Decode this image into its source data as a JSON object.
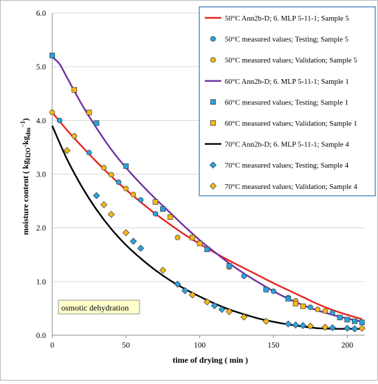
{
  "chart_data": {
    "type": "scatter",
    "xlabel": "time of drying  ( min )",
    "ylabel": "moisture content  ( kg",
    "ylabel_sub1": "H2O",
    "ylabel_mid": "·kg",
    "ylabel_sub2": "dm",
    "ylabel_sup": "−1",
    "ylabel_end": ")",
    "xlim": [
      0,
      212
    ],
    "ylim": [
      0,
      6.0
    ],
    "x_ticks": [
      "0",
      "50",
      "100",
      "150",
      "200"
    ],
    "y_ticks": [
      "0.0",
      "1.0",
      "2.0",
      "3.0",
      "4.0",
      "5.0",
      "6.0"
    ],
    "annotation": "osmotic dehydration",
    "legend_placement": "top-right",
    "series": [
      {
        "name": "50°C  Ann2b-D; 6. MLP 5-11-1; Sample 5",
        "kind": "line",
        "color": "#e8231f",
        "x": [
          0,
          10,
          20,
          30,
          40,
          50,
          60,
          70,
          80,
          90,
          100,
          110,
          120,
          130,
          140,
          150,
          160,
          170,
          180,
          190,
          200,
          210
        ],
        "y": [
          4.15,
          3.82,
          3.52,
          3.23,
          2.96,
          2.71,
          2.48,
          2.26,
          2.06,
          1.87,
          1.7,
          1.54,
          1.39,
          1.25,
          1.11,
          0.97,
          0.84,
          0.71,
          0.58,
          0.47,
          0.38,
          0.3
        ]
      },
      {
        "name": "50°C measured values; Testing; Sample 5",
        "kind": "marker",
        "marker": "circle",
        "color": "#2aa3dc",
        "x": [
          5,
          25,
          45,
          60,
          70,
          130,
          150,
          160,
          175,
          190
        ],
        "y": [
          4.0,
          3.4,
          2.85,
          2.52,
          2.26,
          1.1,
          0.82,
          0.7,
          0.52,
          0.42
        ]
      },
      {
        "name": "50°C measured values; Validation; Sample 5",
        "kind": "marker",
        "marker": "circle",
        "color": "#f6b716",
        "x": [
          0,
          15,
          35,
          40,
          50,
          55,
          85,
          120,
          165,
          180,
          185
        ],
        "y": [
          4.15,
          3.71,
          3.12,
          2.99,
          2.73,
          2.62,
          1.82,
          1.27,
          0.64,
          0.48,
          0.45
        ]
      },
      {
        "name": "60°C  Ann2b-D; 6. MLP 5-11-1; Sample 1",
        "kind": "line",
        "color": "#7030a0",
        "x": [
          0,
          5,
          10,
          20,
          30,
          40,
          50,
          60,
          70,
          80,
          90,
          100,
          110,
          120,
          130,
          140,
          150,
          160,
          170,
          180,
          190,
          200,
          210
        ],
        "y": [
          5.18,
          5.05,
          4.8,
          4.3,
          3.86,
          3.46,
          3.12,
          2.82,
          2.54,
          2.28,
          2.02,
          1.77,
          1.55,
          1.34,
          1.15,
          0.98,
          0.82,
          0.68,
          0.56,
          0.46,
          0.38,
          0.31,
          0.25
        ]
      },
      {
        "name": "60°C measured values; Testing; Sample 1",
        "kind": "marker",
        "marker": "square",
        "color": "#2aa3dc",
        "x": [
          0,
          30,
          50,
          75,
          105,
          120,
          145,
          160,
          195,
          200,
          205,
          210
        ],
        "y": [
          5.21,
          3.95,
          3.15,
          2.35,
          1.6,
          1.29,
          0.85,
          0.68,
          0.33,
          0.29,
          0.26,
          0.24
        ]
      },
      {
        "name": "60°C measured values; Validation; Sample 1",
        "kind": "marker",
        "marker": "square",
        "color": "#f6b716",
        "x": [
          15,
          25,
          70,
          80,
          95,
          100,
          165,
          170
        ],
        "y": [
          4.57,
          4.15,
          2.48,
          2.2,
          1.82,
          1.71,
          0.59,
          0.54
        ]
      },
      {
        "name": "70°C  Ann2b-D; 6. MLP 5-11-1; Sample 4",
        "kind": "line",
        "color": "#000000",
        "x": [
          0,
          10,
          20,
          30,
          40,
          50,
          60,
          70,
          80,
          90,
          100,
          110,
          120,
          130,
          140,
          150,
          160,
          170,
          180,
          190,
          200,
          210
        ],
        "y": [
          3.9,
          3.28,
          2.77,
          2.34,
          1.98,
          1.68,
          1.43,
          1.21,
          1.02,
          0.86,
          0.72,
          0.59,
          0.48,
          0.39,
          0.31,
          0.25,
          0.2,
          0.16,
          0.13,
          0.12,
          0.12,
          0.12
        ]
      },
      {
        "name": "70°C measured values; Testing; Sample 4",
        "kind": "marker",
        "marker": "diamond",
        "color": "#2aa3dc",
        "x": [
          30,
          55,
          60,
          85,
          90,
          110,
          115,
          160,
          165,
          170,
          190,
          200,
          205
        ],
        "y": [
          2.6,
          1.75,
          1.62,
          0.95,
          0.83,
          0.55,
          0.48,
          0.21,
          0.19,
          0.18,
          0.14,
          0.13,
          0.12
        ]
      },
      {
        "name": "70°C measured values; Validation; Sample 4",
        "kind": "marker",
        "marker": "diamond",
        "color": "#f6b716",
        "x": [
          10,
          35,
          40,
          50,
          75,
          95,
          105,
          120,
          130,
          145,
          175,
          185,
          210
        ],
        "y": [
          3.44,
          2.43,
          2.25,
          1.91,
          1.21,
          0.75,
          0.62,
          0.44,
          0.34,
          0.26,
          0.17,
          0.15,
          0.13
        ]
      }
    ]
  }
}
